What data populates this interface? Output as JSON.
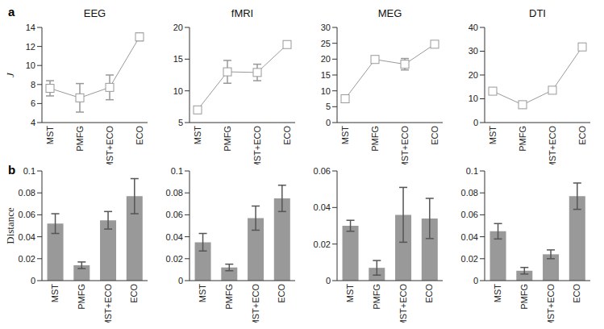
{
  "chart_data": [
    {
      "type": "line",
      "panel": "a",
      "title": "EEG",
      "ylabel": "J",
      "categories": [
        "MST",
        "PMFG",
        "MST+ECO",
        "ECO"
      ],
      "values": [
        7.6,
        6.6,
        7.7,
        13.0
      ],
      "errors": [
        0.8,
        1.5,
        1.3,
        0.4
      ],
      "ylim": [
        4,
        14
      ],
      "yticks": [
        4,
        6,
        8,
        10,
        12,
        14
      ],
      "color": "#999999",
      "marker": "square"
    },
    {
      "type": "line",
      "title": "fMRI",
      "categories": [
        "MST",
        "PMFG",
        "MST+ECO",
        "ECO"
      ],
      "values": [
        7.0,
        13.0,
        12.9,
        17.3
      ],
      "errors": [
        0.5,
        1.8,
        1.3,
        0.3
      ],
      "ylim": [
        5,
        20
      ],
      "yticks": [
        5,
        10,
        15,
        20
      ],
      "color": "#999999",
      "marker": "square"
    },
    {
      "type": "line",
      "title": "MEG",
      "categories": [
        "MST",
        "PMFG",
        "MST+ECO",
        "ECO"
      ],
      "values": [
        7.5,
        19.9,
        18.4,
        24.7
      ],
      "errors": [
        0.3,
        0.5,
        1.8,
        0.5
      ],
      "ylim": [
        0,
        30
      ],
      "yticks": [
        0,
        5,
        10,
        15,
        20,
        25,
        30
      ],
      "color": "#999999",
      "marker": "square"
    },
    {
      "type": "line",
      "title": "DTI",
      "categories": [
        "MST",
        "PMFG",
        "MST+ECO",
        "ECO"
      ],
      "values": [
        13.2,
        7.5,
        13.6,
        31.8
      ],
      "errors": [
        0.8,
        0.6,
        1.0,
        1.0
      ],
      "ylim": [
        0,
        40
      ],
      "yticks": [
        0,
        10,
        20,
        30,
        40
      ],
      "color": "#999999",
      "marker": "square"
    },
    {
      "type": "bar",
      "panel": "b",
      "ylabel": "Distance",
      "categories": [
        "MST",
        "PMFG",
        "MST+ECO",
        "ECO"
      ],
      "values": [
        0.052,
        0.014,
        0.055,
        0.077
      ],
      "errors": [
        0.009,
        0.003,
        0.008,
        0.016
      ],
      "ylim": [
        0,
        0.1
      ],
      "yticks": [
        0,
        0.02,
        0.04,
        0.06,
        0.08,
        0.1
      ],
      "color": "#999999"
    },
    {
      "type": "bar",
      "categories": [
        "MST",
        "PMFG",
        "MST+ECO",
        "ECO"
      ],
      "values": [
        0.035,
        0.012,
        0.057,
        0.075
      ],
      "errors": [
        0.008,
        0.003,
        0.011,
        0.012
      ],
      "ylim": [
        0,
        0.1
      ],
      "yticks": [
        0,
        0.02,
        0.04,
        0.06,
        0.08,
        0.1
      ],
      "color": "#999999"
    },
    {
      "type": "bar",
      "categories": [
        "MST",
        "PMFG",
        "MST+ECO",
        "ECO"
      ],
      "values": [
        0.03,
        0.007,
        0.036,
        0.034
      ],
      "errors": [
        0.003,
        0.004,
        0.015,
        0.011
      ],
      "ylim": [
        0,
        0.06
      ],
      "yticks": [
        0,
        0.02,
        0.04,
        0.06
      ],
      "color": "#999999"
    },
    {
      "type": "bar",
      "categories": [
        "MST",
        "PMFG",
        "MST+ECO",
        "ECO"
      ],
      "values": [
        0.045,
        0.009,
        0.024,
        0.077
      ],
      "errors": [
        0.007,
        0.003,
        0.004,
        0.012
      ],
      "ylim": [
        0,
        0.1
      ],
      "yticks": [
        0,
        0.02,
        0.04,
        0.06,
        0.08,
        0.1
      ],
      "color": "#999999"
    }
  ]
}
